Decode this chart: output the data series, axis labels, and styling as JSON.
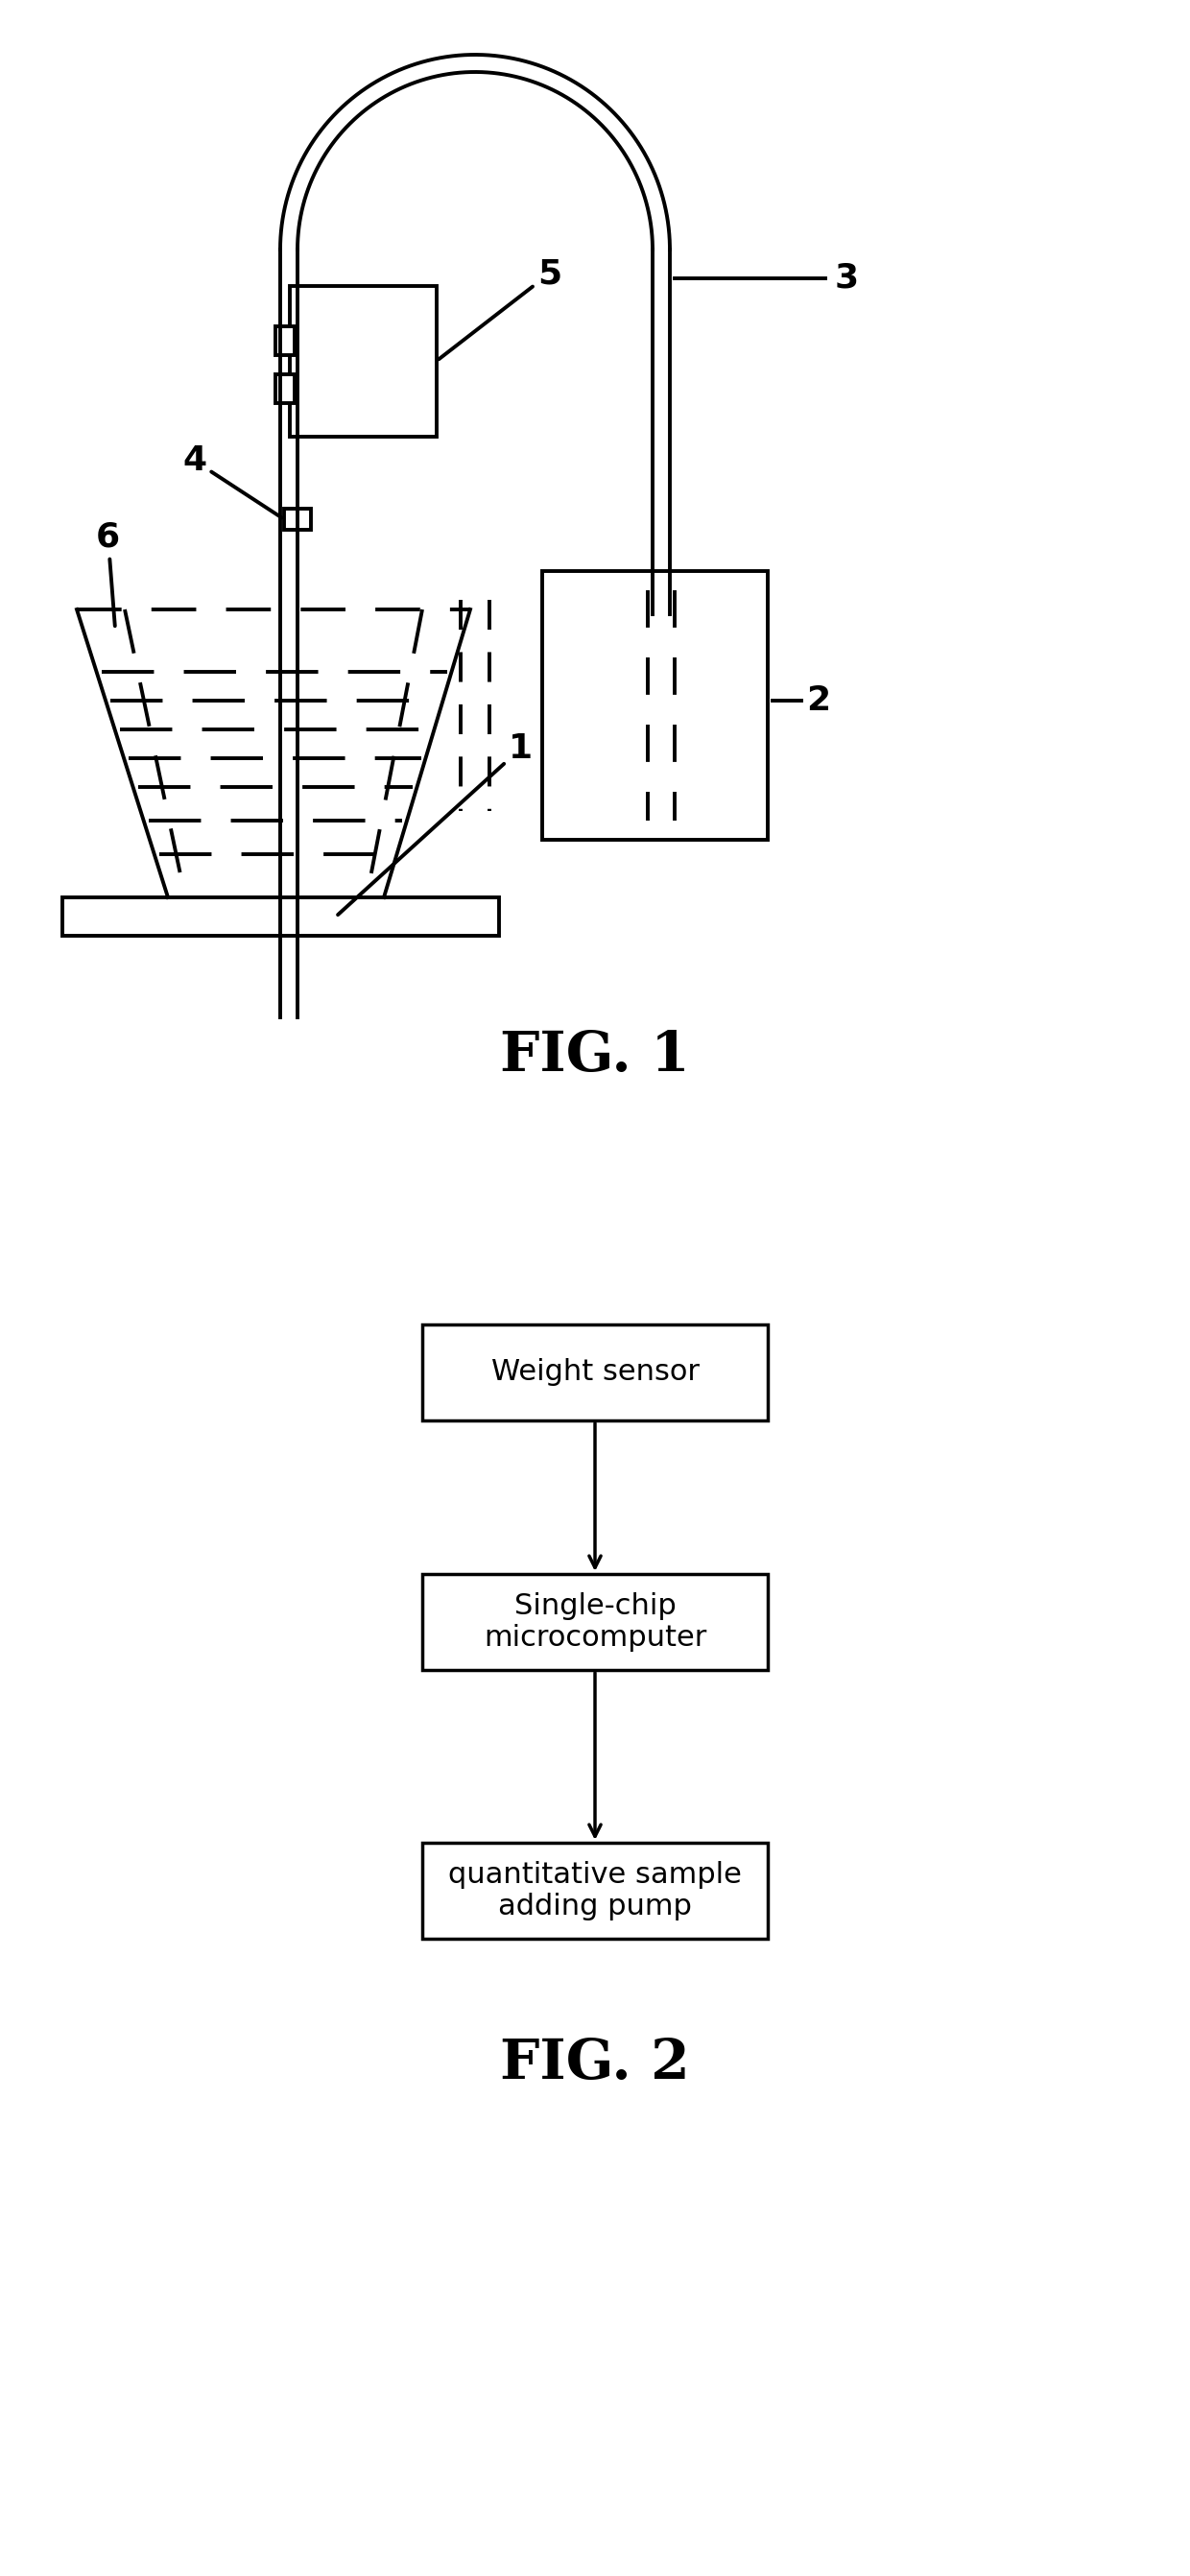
{
  "bg_color": "#ffffff",
  "line_color": "#000000",
  "fig1_label": "FIG. 1",
  "fig2_label": "FIG. 2",
  "box1_label": "Weight sensor",
  "box2_label": "Single-chip\nmicrocomputer",
  "box3_label": "quantitative sample\nadding pump"
}
